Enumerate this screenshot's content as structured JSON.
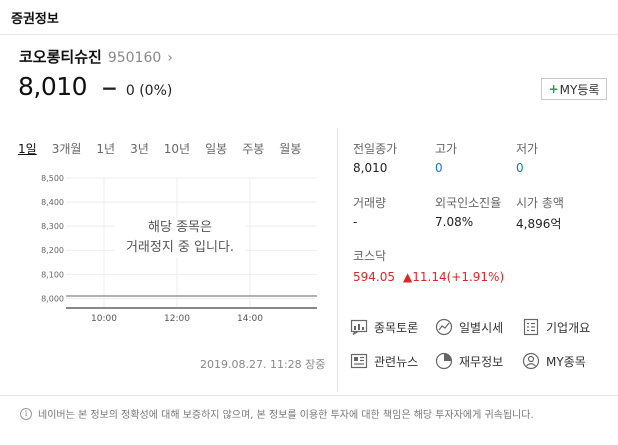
{
  "header": {
    "title": "증권정보"
  },
  "stock": {
    "name": "코오롱티슈진",
    "code": "950160",
    "chevron": "›",
    "price": "8,010",
    "dash": "−",
    "change": "0 (0%)"
  },
  "my_button": {
    "plus": "+",
    "label": "MY등록"
  },
  "period_tabs": [
    "1일",
    "3개월",
    "1년",
    "3년",
    "10년",
    "일봉",
    "주봉",
    "월봉"
  ],
  "chart_data": {
    "type": "line",
    "y_ticks": [
      "8,500",
      "8,400",
      "8,300",
      "8,200",
      "8,100",
      "8,000"
    ],
    "x_ticks": [
      "10:00",
      "12:00",
      "14:00"
    ],
    "ylim": [
      7960,
      8500
    ],
    "series": [
      {
        "values": [
          8010,
          8010
        ]
      }
    ],
    "overlay_text_1": "해당 종목은",
    "overlay_text_2": "거래정지 중 입니다."
  },
  "timestamp": "2019.08.27. 11:28 장중",
  "stats": {
    "prev_close": {
      "label": "전일종가",
      "value": "8,010"
    },
    "high": {
      "label": "고가",
      "value": "0"
    },
    "low": {
      "label": "저가",
      "value": "0"
    },
    "volume": {
      "label": "거래량",
      "value": "-"
    },
    "foreign": {
      "label": "외국인소진율",
      "value": "7.08%"
    },
    "market_cap": {
      "label": "시가 총액",
      "value": "4,896억"
    }
  },
  "kospi": {
    "label": "코스닥",
    "value": "594.05",
    "change": "▲11.14(+1.91%)"
  },
  "links": {
    "forum": "종목토론",
    "daily": "일별시세",
    "company": "기업개요",
    "news": "관련뉴스",
    "finance": "재무정보",
    "my": "MY종목"
  },
  "footer": {
    "icon": "i",
    "text": "네이버는 본 정보의 정확성에 대해 보증하지 않으며, 본 정보를 이용한 투자에 대한 책임은 해당 투자자에게 귀속됩니다."
  },
  "colors": {
    "up": "#e02424",
    "blue": "#1a73e8",
    "green": "#22a34a"
  }
}
